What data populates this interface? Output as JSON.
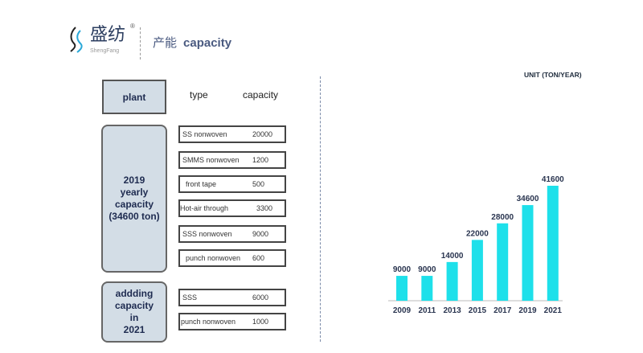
{
  "header": {
    "logo_cn": "盛纺",
    "logo_en": "ShengFang",
    "title_cn": "产能",
    "title_en": "capacity"
  },
  "table": {
    "plant_label": "plant",
    "type_label": "type",
    "capacity_label": "capacity",
    "group_2019": [
      "2019",
      "yearly",
      "capacity",
      "(34600 ton)"
    ],
    "group_2021": [
      "addding",
      "capacity",
      "in",
      "2021"
    ],
    "rows_2019": [
      {
        "type": "SS nonwoven",
        "capacity": "20000"
      },
      {
        "type": "SMMS nonwoven",
        "capacity": "1200"
      },
      {
        "type": "front tape",
        "capacity": "500"
      },
      {
        "type": "Hot-air through",
        "capacity": "3300"
      },
      {
        "type": "SSS nonwoven",
        "capacity": "9000"
      },
      {
        "type": "punch nonwoven",
        "capacity": "600"
      }
    ],
    "rows_2021": [
      {
        "type": "SSS",
        "capacity": "6000"
      },
      {
        "type": "punch nonwoven",
        "capacity": "1000"
      }
    ]
  },
  "chart_data": {
    "type": "bar",
    "unit": "UNIT (TON/YEAR)",
    "categories": [
      "2009",
      "2011",
      "2013",
      "2015",
      "2017",
      "2019",
      "2021"
    ],
    "values": [
      9000,
      9000,
      14000,
      22000,
      28000,
      34600,
      41600
    ],
    "ylim": [
      0,
      41600
    ],
    "color": "#1ee0ea"
  }
}
